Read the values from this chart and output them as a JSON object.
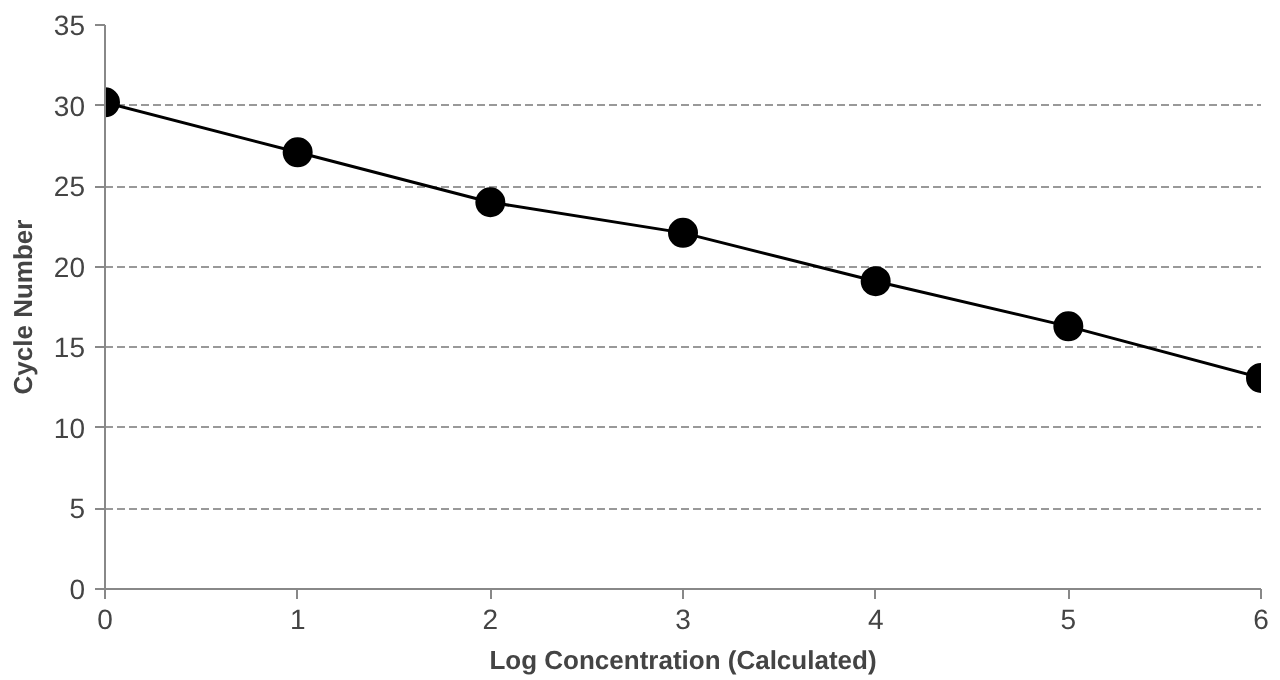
{
  "chart_data": {
    "type": "line",
    "xlabel": "Log Concentration (Calculated)",
    "ylabel": "Cycle Number",
    "x": [
      0,
      1,
      2,
      3,
      4,
      5,
      6
    ],
    "series": [
      {
        "color": "#000000",
        "values": [
          30.2,
          27.1,
          24.0,
          22.1,
          19.1,
          16.3,
          13.1
        ]
      }
    ],
    "xlim": [
      0,
      6
    ],
    "xticks": [
      0,
      1,
      2,
      3,
      4,
      5,
      6
    ],
    "ylim": [
      0,
      35
    ],
    "yticks": [
      0,
      5,
      10,
      15,
      20,
      25,
      30,
      35
    ],
    "grid": "y",
    "marker": "circle",
    "line_style": "solid"
  }
}
